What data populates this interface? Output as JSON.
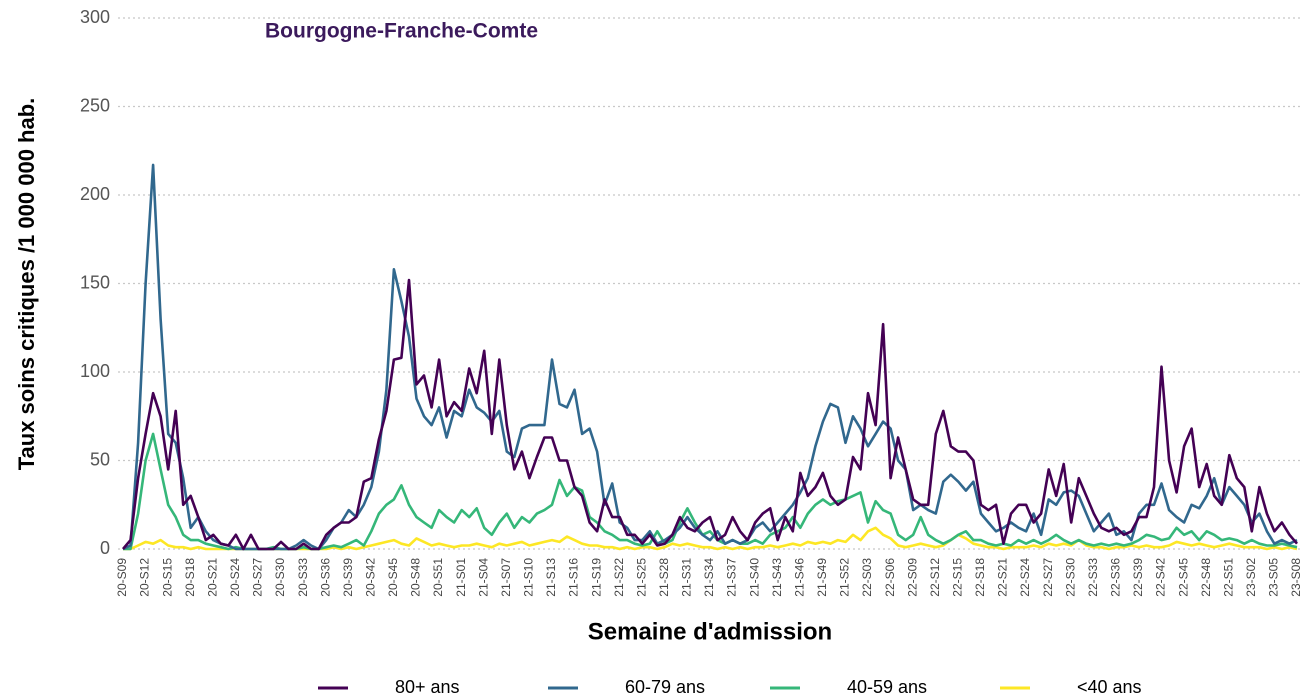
{
  "chart_data": {
    "type": "line",
    "title": "Bourgogne-Franche-Comte",
    "y_label": "Taux soins critiques /1 000 000 hab.",
    "x_label": "Semaine d'admission",
    "ylim": [
      0,
      300
    ],
    "yticks": [
      0,
      50,
      100,
      150,
      200,
      250,
      300
    ],
    "grid": true,
    "legend": "bottom",
    "categories": [
      "20-S09",
      null,
      null,
      "20-S12",
      null,
      null,
      "20-S15",
      null,
      null,
      "20-S18",
      null,
      null,
      "20-S21",
      null,
      null,
      "20-S24",
      null,
      null,
      "20-S27",
      null,
      null,
      "20-S30",
      null,
      null,
      "20-S33",
      null,
      null,
      "20-S36",
      null,
      null,
      "20-S39",
      null,
      null,
      "20-S42",
      null,
      null,
      "20-S45",
      null,
      null,
      "20-S48",
      null,
      null,
      "20-S51",
      null,
      null,
      "21-S01",
      null,
      null,
      "21-S04",
      null,
      null,
      "21-S07",
      null,
      null,
      "21-S10",
      null,
      null,
      "21-S13",
      null,
      null,
      "21-S16",
      null,
      null,
      "21-S19",
      null,
      null,
      "21-S22",
      null,
      null,
      "21-S25",
      null,
      null,
      "21-S28",
      null,
      null,
      "21-S31",
      null,
      null,
      "21-S34",
      null,
      null,
      "21-S37",
      null,
      null,
      "21-S40",
      null,
      null,
      "21-S43",
      null,
      null,
      "21-S46",
      null,
      null,
      "21-S49",
      null,
      null,
      "21-S52",
      null,
      null,
      "22-S03",
      null,
      null,
      "22-S06",
      null,
      null,
      "22-S09",
      null,
      null,
      "22-S12",
      null,
      null,
      "22-S15",
      null,
      null,
      "22-S18",
      null,
      null,
      "22-S21",
      null,
      null,
      "22-S24",
      null,
      null,
      "22-S27",
      null,
      null,
      "22-S30",
      null,
      null,
      "22-S33",
      null,
      null,
      "22-S36",
      null,
      null,
      "22-S39",
      null,
      null,
      "22-S42",
      null,
      null,
      "22-S45",
      null,
      null,
      "22-S48",
      null,
      null,
      "22-S51",
      null,
      null,
      "23-S02",
      null,
      null,
      "23-S05",
      null,
      null,
      "23-S08"
    ],
    "series": [
      {
        "name": "80+ ans",
        "color": "#440154",
        "values": [
          0,
          5,
          40,
          65,
          88,
          75,
          45,
          78,
          25,
          30,
          18,
          5,
          8,
          3,
          2,
          8,
          0,
          8,
          0,
          0,
          0,
          4,
          0,
          0,
          3,
          0,
          0,
          8,
          12,
          15,
          15,
          18,
          38,
          40,
          62,
          78,
          107,
          108,
          152,
          93,
          98,
          80,
          107,
          75,
          83,
          78,
          102,
          88,
          112,
          65,
          107,
          70,
          45,
          55,
          40,
          52,
          63,
          63,
          50,
          50,
          35,
          30,
          15,
          10,
          28,
          18,
          18,
          8,
          8,
          3,
          8,
          2,
          3,
          8,
          18,
          12,
          10,
          15,
          18,
          5,
          8,
          18,
          10,
          5,
          15,
          20,
          23,
          5,
          18,
          10,
          43,
          30,
          35,
          43,
          30,
          25,
          28,
          52,
          45,
          88,
          70,
          127,
          40,
          63,
          45,
          28,
          25,
          25,
          65,
          78,
          58,
          55,
          55,
          50,
          25,
          22,
          25,
          3,
          20,
          25,
          25,
          15,
          20,
          45,
          30,
          48,
          15,
          40,
          30,
          20,
          12,
          10,
          12,
          8,
          10,
          18,
          18,
          35,
          103,
          50,
          32,
          58,
          68,
          35,
          48,
          30,
          25,
          53,
          40,
          35,
          10,
          35,
          20,
          10,
          15,
          8,
          3
        ]
      },
      {
        "name": "60-79 ans",
        "color": "#31688e",
        "values": [
          0,
          2,
          60,
          150,
          217,
          130,
          65,
          60,
          40,
          12,
          18,
          10,
          5,
          3,
          2,
          0,
          0,
          0,
          0,
          0,
          0,
          0,
          0,
          2,
          5,
          2,
          0,
          5,
          12,
          15,
          22,
          18,
          25,
          35,
          55,
          90,
          158,
          140,
          120,
          85,
          75,
          70,
          80,
          63,
          78,
          75,
          90,
          80,
          77,
          72,
          78,
          55,
          52,
          68,
          70,
          70,
          70,
          107,
          82,
          80,
          90,
          65,
          68,
          55,
          25,
          37,
          15,
          12,
          5,
          5,
          10,
          3,
          5,
          8,
          12,
          18,
          12,
          8,
          5,
          10,
          3,
          5,
          3,
          5,
          12,
          15,
          10,
          15,
          20,
          25,
          32,
          40,
          58,
          72,
          82,
          80,
          60,
          75,
          68,
          58,
          65,
          72,
          68,
          50,
          45,
          22,
          25,
          22,
          20,
          38,
          42,
          38,
          33,
          38,
          20,
          15,
          10,
          12,
          15,
          12,
          10,
          20,
          8,
          28,
          25,
          32,
          33,
          30,
          20,
          10,
          15,
          20,
          8,
          10,
          5,
          20,
          25,
          25,
          37,
          22,
          18,
          15,
          25,
          23,
          30,
          40,
          25,
          35,
          30,
          25,
          15,
          20,
          10,
          3,
          5,
          3,
          5
        ]
      },
      {
        "name": "40-59 ans",
        "color": "#35b779",
        "values": [
          0,
          0,
          20,
          50,
          65,
          45,
          25,
          18,
          8,
          5,
          5,
          3,
          2,
          1,
          0,
          1,
          0,
          0,
          0,
          0,
          1,
          0,
          0,
          0,
          1,
          0,
          0,
          1,
          2,
          1,
          3,
          5,
          2,
          10,
          20,
          25,
          28,
          36,
          25,
          18,
          15,
          12,
          22,
          18,
          15,
          22,
          18,
          23,
          12,
          8,
          15,
          20,
          12,
          18,
          15,
          20,
          22,
          25,
          39,
          30,
          35,
          33,
          18,
          15,
          10,
          8,
          5,
          5,
          3,
          2,
          3,
          10,
          3,
          5,
          15,
          23,
          15,
          8,
          10,
          5,
          3,
          5,
          3,
          3,
          5,
          3,
          8,
          10,
          12,
          18,
          12,
          20,
          25,
          28,
          25,
          27,
          28,
          30,
          32,
          15,
          27,
          22,
          20,
          8,
          5,
          8,
          18,
          8,
          5,
          3,
          5,
          8,
          10,
          5,
          5,
          3,
          2,
          3,
          2,
          5,
          3,
          5,
          3,
          5,
          8,
          5,
          3,
          5,
          3,
          2,
          3,
          2,
          3,
          2,
          3,
          5,
          8,
          7,
          5,
          6,
          12,
          8,
          10,
          5,
          10,
          8,
          5,
          6,
          5,
          3,
          5,
          3,
          2,
          2,
          3,
          2,
          1
        ]
      },
      {
        "name": "<40 ans",
        "color": "#fde725",
        "values": [
          0,
          0,
          2,
          4,
          3,
          5,
          2,
          1,
          1,
          0,
          1,
          0,
          0,
          0,
          0,
          0,
          0,
          0,
          0,
          0,
          0,
          0,
          0,
          0,
          0,
          0,
          0,
          0,
          1,
          0,
          1,
          0,
          1,
          2,
          3,
          4,
          5,
          3,
          2,
          6,
          4,
          2,
          3,
          2,
          1,
          2,
          2,
          3,
          2,
          1,
          3,
          2,
          3,
          4,
          2,
          3,
          4,
          5,
          4,
          7,
          5,
          3,
          2,
          2,
          1,
          1,
          0,
          1,
          0,
          1,
          1,
          0,
          1,
          3,
          2,
          3,
          2,
          1,
          1,
          0,
          1,
          0,
          1,
          0,
          1,
          1,
          2,
          1,
          2,
          3,
          2,
          4,
          3,
          4,
          3,
          5,
          4,
          8,
          5,
          10,
          12,
          8,
          6,
          2,
          1,
          2,
          3,
          2,
          1,
          2,
          5,
          8,
          6,
          3,
          2,
          1,
          1,
          0,
          1,
          1,
          1,
          2,
          1,
          3,
          2,
          3,
          2,
          5,
          2,
          1,
          1,
          0,
          1,
          1,
          2,
          1,
          2,
          1,
          1,
          2,
          4,
          3,
          2,
          3,
          2,
          1,
          2,
          3,
          2,
          1,
          1,
          1,
          0,
          1,
          0,
          1,
          0
        ]
      }
    ]
  }
}
